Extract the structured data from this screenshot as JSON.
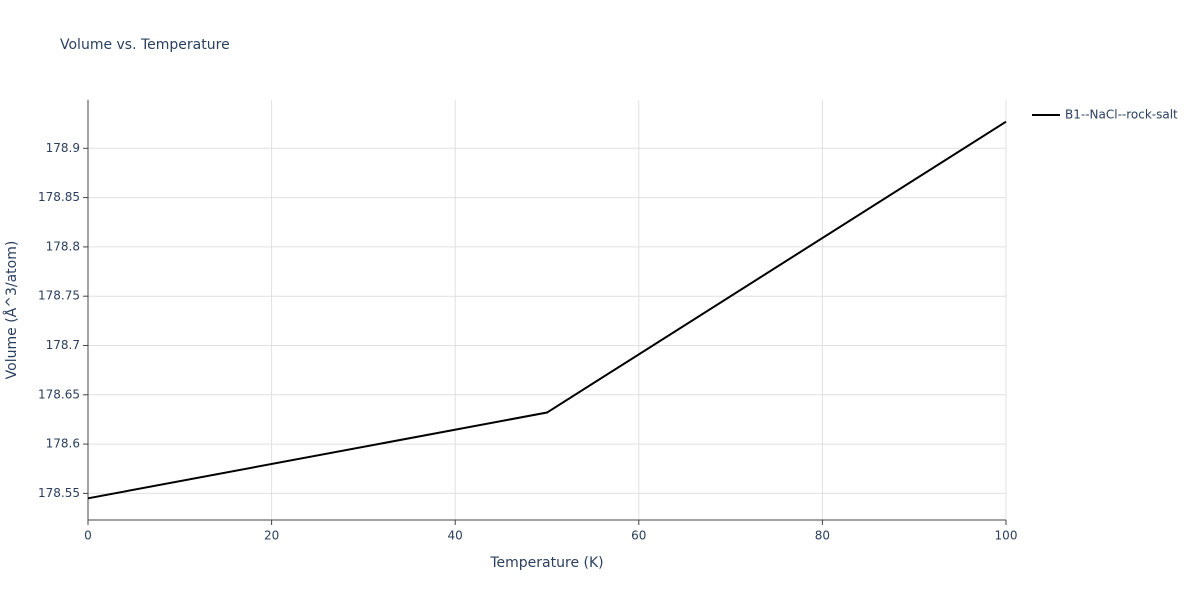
{
  "chart_data": {
    "type": "line",
    "title": "Volume vs. Temperature",
    "x_label": "Temperature (K)",
    "y_label": "Volume (Å^3/atom)",
    "x": [
      0,
      50,
      100
    ],
    "series": [
      {
        "name": "B1--NaCl--rock-salt",
        "color": "#000000",
        "values": [
          178.545,
          178.632,
          178.927
        ]
      }
    ],
    "xlim": [
      0,
      100
    ],
    "xticks": [
      0,
      20,
      40,
      60,
      80,
      100
    ],
    "ylim": [
      178.523,
      178.949
    ],
    "yticks": [
      178.55,
      178.6,
      178.65,
      178.7,
      178.75,
      178.8,
      178.85,
      178.9
    ],
    "grid": true,
    "legend": "top-right"
  }
}
